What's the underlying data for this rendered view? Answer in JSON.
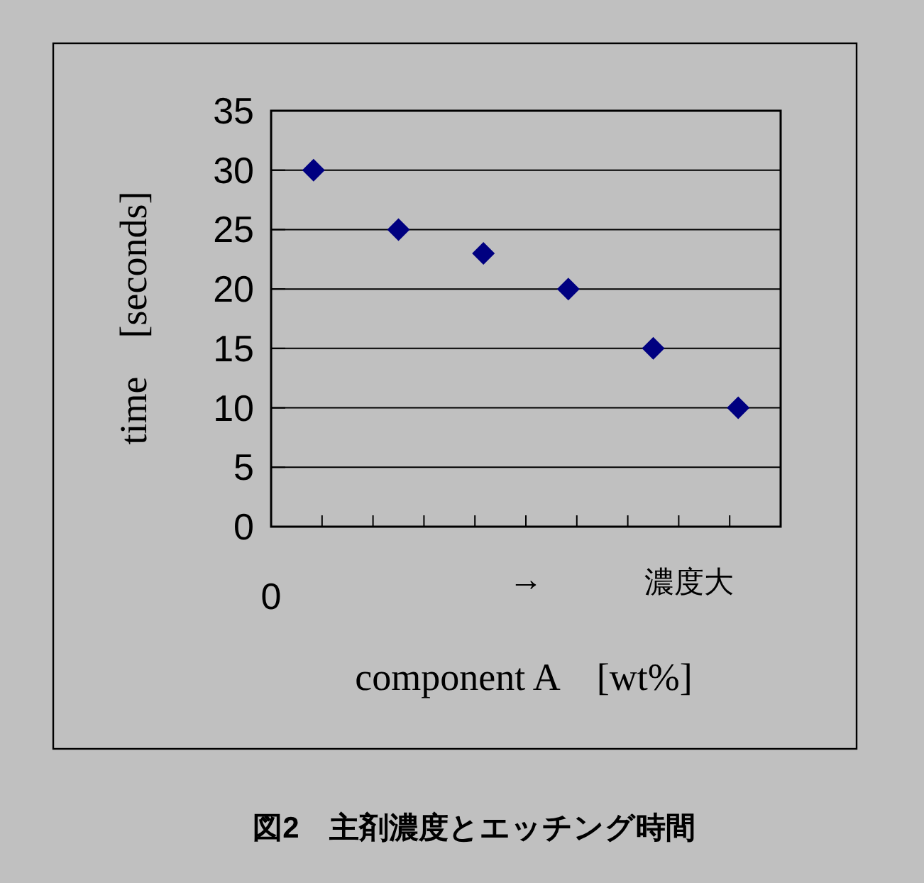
{
  "chart_data": {
    "type": "scatter",
    "title": "図2　主剤濃度とエッチング時間",
    "xlabel": "component A　[wt%]",
    "ylabel": "time　[seconds]",
    "categories": [
      null,
      null,
      null,
      null,
      null,
      null
    ],
    "values": [
      30,
      25,
      23,
      20,
      15,
      10
    ],
    "color": "#000080",
    "marker": "diamond",
    "ylim": [
      0,
      35
    ],
    "yticks": [
      0,
      5,
      10,
      15,
      20,
      25,
      30,
      35
    ],
    "grid": "y",
    "annotations": [
      "0",
      "→",
      "濃度大"
    ]
  }
}
